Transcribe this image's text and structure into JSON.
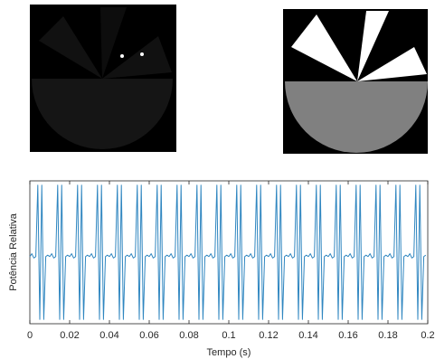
{
  "chart_data": {
    "type": "line",
    "xlabel": "Tempo (s)",
    "ylabel": "Potência Relativa",
    "xlim": [
      0,
      0.2
    ],
    "xticks": [
      0,
      0.02,
      0.04,
      0.06,
      0.08,
      0.1,
      0.12,
      0.14,
      0.16,
      0.18,
      0.2
    ],
    "ylim": [
      0,
      1
    ],
    "x": [
      0,
      0.001,
      0.002,
      0.003,
      0.004,
      0.005,
      0.006,
      0.007,
      0.008,
      0.009,
      0.01,
      0.011,
      0.012,
      0.013,
      0.014,
      0.015,
      0.016,
      0.017,
      0.018,
      0.019,
      0.02,
      0.021,
      0.022,
      0.023,
      0.024,
      0.025,
      0.026,
      0.027,
      0.028,
      0.029,
      0.03,
      0.031,
      0.032,
      0.033,
      0.034,
      0.035,
      0.036,
      0.037,
      0.038,
      0.039,
      0.04,
      0.041,
      0.042,
      0.043,
      0.044,
      0.045,
      0.046,
      0.047,
      0.048,
      0.049,
      0.05,
      0.051,
      0.052,
      0.053,
      0.054,
      0.055,
      0.056,
      0.057,
      0.058,
      0.059,
      0.06,
      0.061,
      0.062,
      0.063,
      0.064,
      0.065,
      0.066,
      0.067,
      0.068,
      0.069,
      0.07,
      0.071,
      0.072,
      0.073,
      0.074,
      0.075,
      0.076,
      0.077,
      0.078,
      0.079,
      0.08,
      0.081,
      0.082,
      0.083,
      0.084,
      0.085,
      0.086,
      0.087,
      0.088,
      0.089,
      0.09,
      0.091,
      0.092,
      0.093,
      0.094,
      0.095,
      0.096,
      0.097,
      0.098,
      0.099,
      0.1,
      0.101,
      0.102,
      0.103,
      0.104,
      0.105,
      0.106,
      0.107,
      0.108,
      0.109,
      0.11,
      0.111,
      0.112,
      0.113,
      0.114,
      0.115,
      0.116,
      0.117,
      0.118,
      0.119,
      0.12,
      0.121,
      0.122,
      0.123,
      0.124,
      0.125,
      0.126,
      0.127,
      0.128,
      0.129,
      0.13,
      0.131,
      0.132,
      0.133,
      0.134,
      0.135,
      0.136,
      0.137,
      0.138,
      0.139,
      0.14,
      0.141,
      0.142,
      0.143,
      0.144,
      0.145,
      0.146,
      0.147,
      0.148,
      0.149,
      0.15,
      0.151,
      0.152,
      0.153,
      0.154,
      0.155,
      0.156,
      0.157,
      0.158,
      0.159,
      0.16,
      0.161,
      0.162,
      0.163,
      0.164,
      0.165,
      0.166,
      0.167,
      0.168,
      0.169,
      0.17,
      0.171,
      0.172,
      0.173,
      0.174,
      0.175,
      0.176,
      0.177,
      0.178,
      0.179,
      0.18,
      0.181,
      0.182,
      0.183,
      0.184,
      0.185,
      0.186,
      0.187,
      0.188,
      0.189,
      0.19,
      0.191,
      0.192,
      0.193,
      0.194,
      0.195,
      0.196,
      0.197,
      0.198,
      0.199
    ],
    "series": [
      {
        "color": "#2f86c0",
        "values": [
          0.47,
          0.49,
          0.46,
          0.47,
          0.97,
          0.03,
          0.97,
          0.03,
          0.47,
          0.48,
          0.47,
          0.49,
          0.46,
          0.47,
          0.97,
          0.03,
          0.97,
          0.03,
          0.47,
          0.48,
          0.47,
          0.49,
          0.46,
          0.47,
          0.97,
          0.03,
          0.97,
          0.03,
          0.47,
          0.48,
          0.47,
          0.49,
          0.46,
          0.47,
          0.97,
          0.03,
          0.97,
          0.03,
          0.47,
          0.48,
          0.47,
          0.49,
          0.46,
          0.47,
          0.97,
          0.03,
          0.97,
          0.03,
          0.47,
          0.48,
          0.47,
          0.49,
          0.46,
          0.47,
          0.97,
          0.03,
          0.97,
          0.03,
          0.47,
          0.48,
          0.47,
          0.49,
          0.46,
          0.47,
          0.97,
          0.03,
          0.97,
          0.03,
          0.47,
          0.48,
          0.47,
          0.49,
          0.46,
          0.47,
          0.97,
          0.03,
          0.97,
          0.03,
          0.47,
          0.48,
          0.47,
          0.49,
          0.46,
          0.47,
          0.97,
          0.03,
          0.97,
          0.03,
          0.47,
          0.48,
          0.47,
          0.49,
          0.46,
          0.47,
          0.97,
          0.03,
          0.97,
          0.03,
          0.47,
          0.48,
          0.47,
          0.49,
          0.46,
          0.47,
          0.97,
          0.03,
          0.97,
          0.03,
          0.47,
          0.48,
          0.47,
          0.49,
          0.46,
          0.47,
          0.97,
          0.03,
          0.97,
          0.03,
          0.47,
          0.48,
          0.47,
          0.49,
          0.46,
          0.47,
          0.97,
          0.03,
          0.97,
          0.03,
          0.47,
          0.48,
          0.47,
          0.49,
          0.46,
          0.47,
          0.97,
          0.03,
          0.97,
          0.03,
          0.47,
          0.48,
          0.47,
          0.49,
          0.46,
          0.47,
          0.97,
          0.03,
          0.97,
          0.03,
          0.47,
          0.48,
          0.47,
          0.49,
          0.46,
          0.47,
          0.97,
          0.03,
          0.97,
          0.03,
          0.47,
          0.48,
          0.47,
          0.49,
          0.46,
          0.47,
          0.97,
          0.03,
          0.97,
          0.03,
          0.47,
          0.48,
          0.47,
          0.49,
          0.46,
          0.47,
          0.97,
          0.03,
          0.97,
          0.03,
          0.47,
          0.48,
          0.47,
          0.49,
          0.46,
          0.47,
          0.97,
          0.03,
          0.97,
          0.03,
          0.47,
          0.48,
          0.47,
          0.49,
          0.46,
          0.47,
          0.97,
          0.03,
          0.97,
          0.03,
          0.47,
          0.48
        ]
      }
    ]
  }
}
